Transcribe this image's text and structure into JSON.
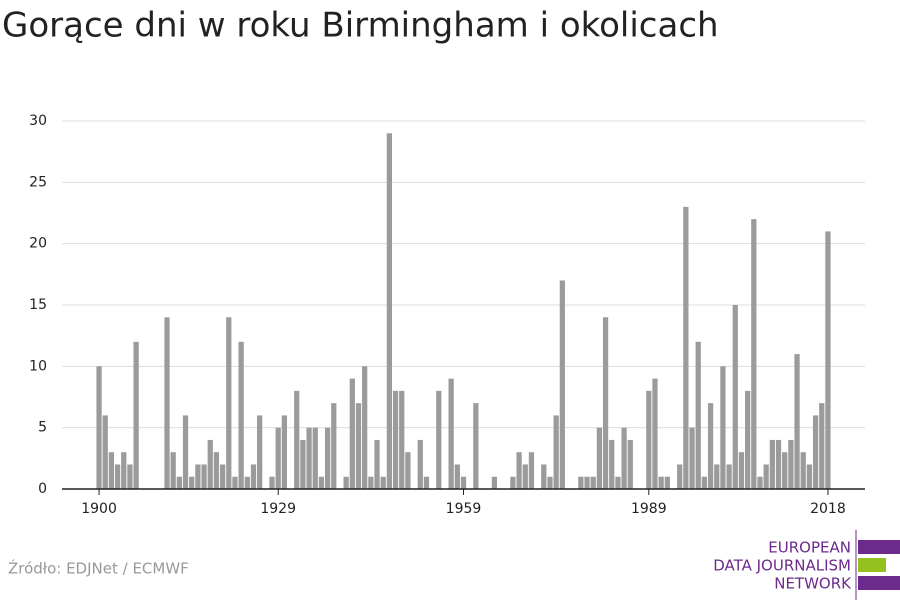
{
  "chart_data": {
    "type": "bar",
    "title": "Gorące dni w roku Birmingham i okolicach",
    "x": [
      1900,
      1901,
      1902,
      1903,
      1904,
      1905,
      1906,
      1907,
      1908,
      1909,
      1910,
      1911,
      1912,
      1913,
      1914,
      1915,
      1916,
      1917,
      1918,
      1919,
      1920,
      1921,
      1922,
      1923,
      1924,
      1925,
      1926,
      1927,
      1928,
      1929,
      1930,
      1931,
      1932,
      1933,
      1934,
      1935,
      1936,
      1937,
      1938,
      1939,
      1940,
      1941,
      1942,
      1943,
      1944,
      1945,
      1946,
      1947,
      1948,
      1949,
      1950,
      1951,
      1952,
      1953,
      1954,
      1955,
      1956,
      1957,
      1958,
      1959,
      1960,
      1961,
      1962,
      1963,
      1964,
      1965,
      1966,
      1967,
      1968,
      1969,
      1970,
      1971,
      1972,
      1973,
      1974,
      1975,
      1976,
      1977,
      1978,
      1979,
      1980,
      1981,
      1982,
      1983,
      1984,
      1985,
      1986,
      1987,
      1988,
      1989,
      1990,
      1991,
      1992,
      1993,
      1994,
      1995,
      1996,
      1997,
      1998,
      1999,
      2000,
      2001,
      2002,
      2003,
      2004,
      2005,
      2006,
      2007,
      2008,
      2009,
      2010,
      2011,
      2012,
      2013,
      2014,
      2015,
      2016,
      2017,
      2018
    ],
    "values": [
      10,
      6,
      3,
      2,
      3,
      2,
      12,
      0,
      0,
      0,
      0,
      14,
      3,
      1,
      6,
      1,
      2,
      2,
      4,
      3,
      2,
      14,
      1,
      12,
      1,
      2,
      6,
      0,
      1,
      5,
      6,
      0,
      8,
      4,
      5,
      5,
      1,
      5,
      7,
      0,
      1,
      9,
      7,
      10,
      1,
      4,
      1,
      29,
      8,
      8,
      3,
      0,
      4,
      1,
      0,
      8,
      0,
      9,
      2,
      1,
      0,
      7,
      0,
      0,
      1,
      0,
      0,
      1,
      3,
      2,
      3,
      0,
      2,
      1,
      6,
      17,
      0,
      0,
      1,
      1,
      1,
      5,
      14,
      4,
      1,
      5,
      4,
      0,
      0,
      8,
      9,
      1,
      1,
      0,
      2,
      23,
      5,
      12,
      1,
      7,
      2,
      10,
      2,
      15,
      3,
      8,
      22,
      1,
      2,
      4,
      4,
      3,
      4,
      11,
      3,
      2,
      6,
      7,
      21
    ],
    "color": "#9b9b9b",
    "xlim": [
      1894,
      2024
    ],
    "xticks": [
      1900,
      1929,
      1959,
      1989,
      2018
    ],
    "ylim": [
      0,
      30
    ],
    "yticks": [
      0,
      5,
      10,
      15,
      20,
      25,
      30
    ],
    "grid": true,
    "source": "Źródło: EDJNet / ECMWF"
  },
  "logo": {
    "lines": [
      "EUROPEAN",
      "DATA JOURNALISM",
      "NETWORK"
    ]
  }
}
